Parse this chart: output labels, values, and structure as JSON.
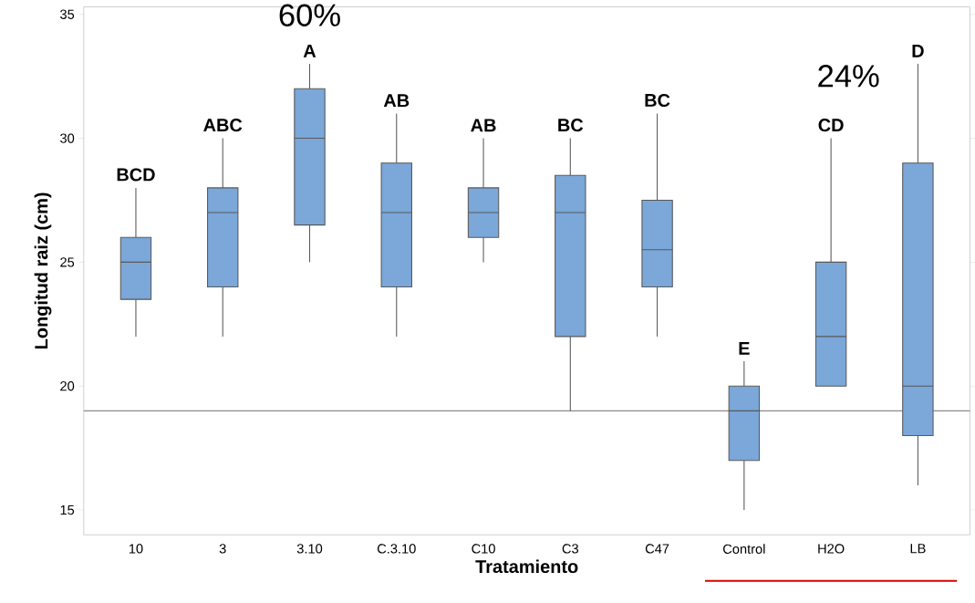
{
  "chart_data": {
    "type": "box",
    "xlabel": "Tratamiento",
    "ylabel": "Longitud raiz (cm)",
    "color": "#7ba7d9",
    "categories": [
      "10",
      "3",
      "3.10",
      "C.3.10",
      "C10",
      "C3",
      "C47",
      "Control",
      "H2O",
      "LB"
    ],
    "boxes": [
      {
        "low": 22,
        "q1": 23.5,
        "median": 25,
        "q3": 26,
        "high": 28
      },
      {
        "low": 22,
        "q1": 24,
        "median": 27,
        "q3": 28,
        "high": 30
      },
      {
        "low": 25,
        "q1": 26.5,
        "median": 30,
        "q3": 32,
        "high": 33
      },
      {
        "low": 22,
        "q1": 24,
        "median": 27,
        "q3": 29,
        "high": 31
      },
      {
        "low": 25,
        "q1": 26,
        "median": 27,
        "q3": 28,
        "high": 30
      },
      {
        "low": 19,
        "q1": 22,
        "median": 27,
        "q3": 28.5,
        "high": 30
      },
      {
        "low": 22,
        "q1": 24,
        "median": 25.5,
        "q3": 27.5,
        "high": 31
      },
      {
        "low": 15,
        "q1": 17,
        "median": 19,
        "q3": 20,
        "high": 21
      },
      {
        "low": 20,
        "q1": 20,
        "median": 22,
        "q3": 25,
        "high": 30
      },
      {
        "low": 16,
        "q1": 18,
        "median": 20,
        "q3": 29,
        "high": 33
      }
    ],
    "ylim": [
      14,
      35.3
    ],
    "yticks": [
      15,
      20,
      25,
      30,
      35
    ],
    "grid": false,
    "ref_lines": [
      {
        "axis": "y",
        "value": 19,
        "color": "#8c8c8c"
      }
    ],
    "annotations": [
      "BCD",
      "ABC",
      "A",
      "AB",
      "AB",
      "BC",
      "BC",
      "E",
      "CD",
      "D",
      "60%",
      "24%"
    ]
  }
}
